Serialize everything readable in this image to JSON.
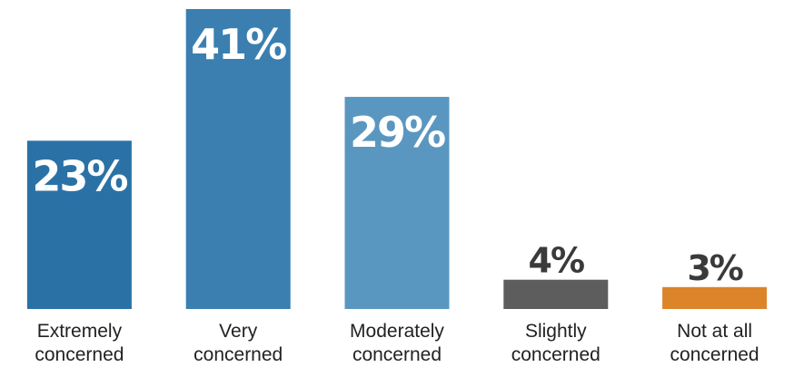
{
  "chart_data": {
    "type": "bar",
    "categories": [
      [
        "Extremely",
        "concerned"
      ],
      [
        "Very",
        "concerned"
      ],
      [
        "Moderately",
        "concerned"
      ],
      [
        "Slightly",
        "concerned"
      ],
      [
        "Not at all",
        "concerned"
      ]
    ],
    "values": [
      23,
      41,
      29,
      4,
      3
    ],
    "value_labels": [
      "23%",
      "41%",
      "29%",
      "4%",
      "3%"
    ],
    "colors": [
      "#2a72a6",
      "#3a7fb0",
      "#5a97c0",
      "#5c5d5c",
      "#dc8429"
    ],
    "label_colors": [
      "#ffffff",
      "#ffffff",
      "#ffffff",
      "#3a3a3a",
      "#3a3a3a"
    ],
    "label_inside": [
      true,
      true,
      true,
      false,
      false
    ],
    "ylim": [
      0,
      41
    ],
    "grid": false,
    "legend": "none"
  }
}
